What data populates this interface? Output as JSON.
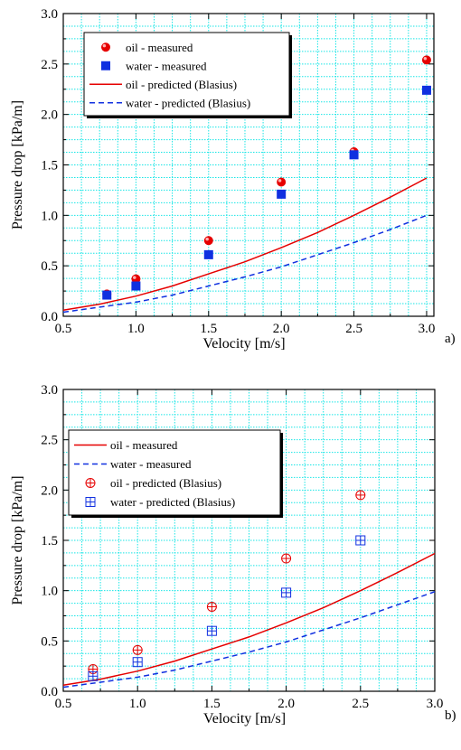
{
  "colors": {
    "oil": "#e60000",
    "water": "#1030e0",
    "grid": "#19e6e6",
    "axis": "#000000"
  },
  "chart_data": [
    {
      "panel_label": "a)",
      "type": "scatter",
      "xlabel": "Velocity [m/s]",
      "ylabel": "Pressure drop [kPa/m]",
      "xlim": [
        0.5,
        3.05
      ],
      "ylim": [
        0.0,
        3.0
      ],
      "xticks": [
        "0.5",
        "1.0",
        "1.5",
        "2.0",
        "2.5",
        "3.0"
      ],
      "xtick_values": [
        0.5,
        1.0,
        1.5,
        2.0,
        2.5,
        3.0
      ],
      "yticks": [
        "0.0",
        "0.5",
        "1.0",
        "1.5",
        "2.0",
        "2.5",
        "3.0"
      ],
      "ytick_values": [
        0.0,
        0.5,
        1.0,
        1.5,
        2.0,
        2.5,
        3.0
      ],
      "grid": true,
      "legend_position": "top-left",
      "series": [
        {
          "name": "oil     - measured",
          "kind": "marker",
          "marker": "sphere",
          "color": "#e60000",
          "x": [
            0.8,
            1.0,
            1.5,
            2.0,
            2.5,
            3.0
          ],
          "y": [
            0.22,
            0.37,
            0.75,
            1.33,
            1.63,
            2.54
          ]
        },
        {
          "name": "water - measured",
          "kind": "marker",
          "marker": "square",
          "color": "#1030e0",
          "x": [
            0.8,
            1.0,
            1.5,
            2.0,
            2.5,
            3.0
          ],
          "y": [
            0.21,
            0.3,
            0.61,
            1.21,
            1.6,
            2.24
          ]
        },
        {
          "name": "oil     - predicted (Blasius)",
          "kind": "line",
          "dash": "solid",
          "color": "#e60000",
          "x": [
            0.5,
            0.75,
            1.0,
            1.25,
            1.5,
            1.75,
            2.0,
            2.25,
            2.5,
            2.75,
            3.0
          ],
          "y": [
            0.06,
            0.12,
            0.2,
            0.3,
            0.42,
            0.54,
            0.68,
            0.83,
            1.0,
            1.18,
            1.37
          ]
        },
        {
          "name": "water - predicted (Blasius)",
          "kind": "line",
          "dash": "dashed",
          "color": "#1030e0",
          "x": [
            0.5,
            0.75,
            1.0,
            1.25,
            1.5,
            1.75,
            2.0,
            2.25,
            2.5,
            2.75,
            3.0
          ],
          "y": [
            0.04,
            0.09,
            0.14,
            0.21,
            0.3,
            0.39,
            0.49,
            0.61,
            0.73,
            0.86,
            1.0
          ]
        }
      ]
    },
    {
      "panel_label": "b)",
      "type": "scatter",
      "xlabel": "Velocity [m/s]",
      "ylabel": "Pressure drop [kPa/m]",
      "xlim": [
        0.5,
        3.0
      ],
      "ylim": [
        0.0,
        3.0
      ],
      "xticks": [
        "0.5",
        "1.0",
        "1.5",
        "2.0",
        "2.5",
        "3.0"
      ],
      "xtick_values": [
        0.5,
        1.0,
        1.5,
        2.0,
        2.5,
        3.0
      ],
      "yticks": [
        "0.0",
        "0.5",
        "1.0",
        "1.5",
        "2.0",
        "2.5",
        "3.0"
      ],
      "ytick_values": [
        0.0,
        0.5,
        1.0,
        1.5,
        2.0,
        2.5,
        3.0
      ],
      "grid": true,
      "legend_position": "top-left",
      "series": [
        {
          "name": "oil     - measured",
          "kind": "line",
          "dash": "solid",
          "color": "#e60000",
          "x": [
            0.5,
            0.75,
            1.0,
            1.25,
            1.5,
            1.75,
            2.0,
            2.25,
            2.5,
            2.75,
            3.0
          ],
          "y": [
            0.06,
            0.12,
            0.2,
            0.3,
            0.42,
            0.54,
            0.68,
            0.83,
            1.0,
            1.18,
            1.37
          ]
        },
        {
          "name": "water - measured",
          "kind": "line",
          "dash": "dashed",
          "color": "#1030e0",
          "x": [
            0.5,
            0.75,
            1.0,
            1.25,
            1.5,
            1.75,
            2.0,
            2.25,
            2.5,
            2.75,
            3.0
          ],
          "y": [
            0.04,
            0.09,
            0.14,
            0.21,
            0.3,
            0.39,
            0.49,
            0.61,
            0.73,
            0.86,
            0.99
          ]
        },
        {
          "name": "oil     - predicted (Blasius)",
          "kind": "marker",
          "marker": "circle-plus",
          "color": "#e60000",
          "x": [
            0.7,
            1.0,
            1.5,
            2.0,
            2.5
          ],
          "y": [
            0.22,
            0.41,
            0.84,
            1.32,
            1.95
          ]
        },
        {
          "name": "water - predicted (Blasius)",
          "kind": "marker",
          "marker": "square-plus",
          "color": "#1030e0",
          "x": [
            0.7,
            1.0,
            1.5,
            2.0,
            2.5
          ],
          "y": [
            0.15,
            0.29,
            0.6,
            0.98,
            1.5
          ]
        }
      ]
    }
  ]
}
